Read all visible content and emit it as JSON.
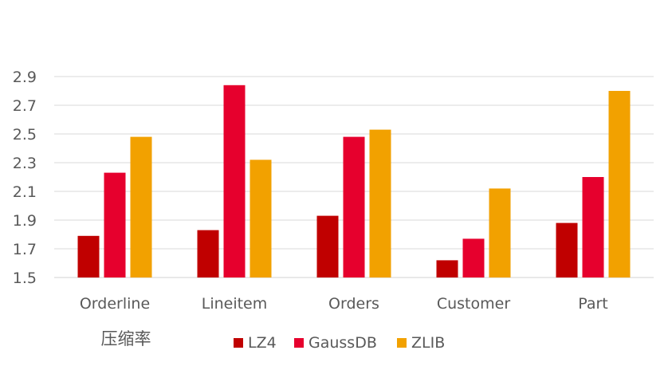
{
  "chart_data": {
    "type": "bar",
    "title": "",
    "xlabel": "",
    "ylabel": "压缩率",
    "ylim": [
      1.5,
      2.9
    ],
    "yticks": [
      "1.5",
      "1.7",
      "1.9",
      "2.1",
      "2.3",
      "2.5",
      "2.7",
      "2.9"
    ],
    "grid": true,
    "legend_position": "bottom",
    "categories": [
      "Orderline",
      "Lineitem",
      "Orders",
      "Customer",
      "Part"
    ],
    "series": [
      {
        "name": "LZ4",
        "color": "#C00000",
        "values": [
          1.79,
          1.83,
          1.93,
          1.62,
          1.88
        ]
      },
      {
        "name": "GaussDB",
        "color": "#E6002D",
        "values": [
          2.23,
          2.84,
          2.48,
          1.77,
          2.2
        ]
      },
      {
        "name": "ZLIB",
        "color": "#F2A100",
        "values": [
          2.48,
          2.32,
          2.53,
          2.12,
          2.8
        ]
      }
    ]
  }
}
